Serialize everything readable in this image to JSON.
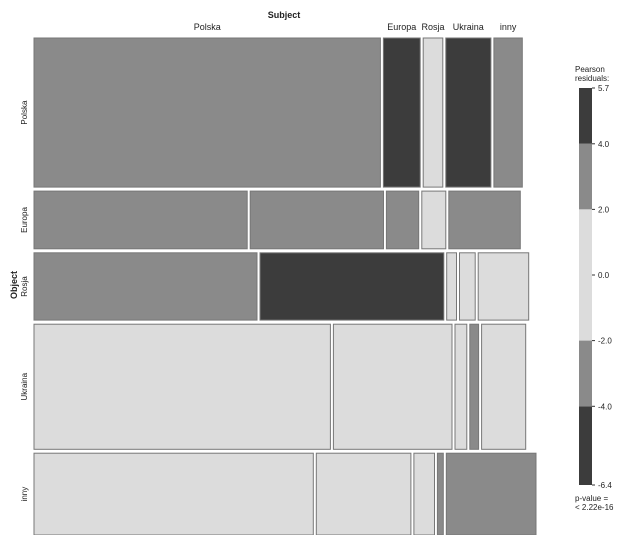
{
  "chart_data": {
    "type": "mosaic",
    "column_variable": "Subject",
    "row_variable": "Object",
    "subject_categories": [
      "Polska",
      "Europa",
      "Rosja",
      "Ukraina",
      "inny"
    ],
    "object_categories": [
      "Polska",
      "Europa",
      "Rosja",
      "Ukraina",
      "inny"
    ],
    "rows": [
      {
        "object": "Polska",
        "proportion": 0.31,
        "cells": [
          {
            "subject": "Polska",
            "share": 0.707,
            "residual_band": "2.0 to 4.0"
          },
          {
            "subject": "Europa",
            "share": 0.075,
            "residual_band": "above 4.0"
          },
          {
            "subject": "Rosja",
            "share": 0.04,
            "residual_band": "-2.0 to 2.0"
          },
          {
            "subject": "Ukraina",
            "share": 0.092,
            "residual_band": "above 4.0"
          },
          {
            "subject": "inny",
            "share": 0.058,
            "residual_band": "2.0 to 4.0"
          }
        ]
      },
      {
        "object": "Europa",
        "proportion": 0.12,
        "cells": [
          {
            "subject": "Polska",
            "share": 0.435,
            "residual_band": "2.0 to 4.0"
          },
          {
            "subject": "Europa",
            "share": 0.272,
            "residual_band": "2.0 to 4.0"
          },
          {
            "subject": "Rosja",
            "share": 0.066,
            "residual_band": "2.0 to 4.0"
          },
          {
            "subject": "Ukraina",
            "share": 0.049,
            "residual_band": "-2.0 to 2.0"
          },
          {
            "subject": "inny",
            "share": 0.146,
            "residual_band": "2.0 to 4.0"
          }
        ]
      },
      {
        "object": "Rosja",
        "proportion": 0.14,
        "cells": [
          {
            "subject": "Polska",
            "share": 0.455,
            "residual_band": "2.0 to 4.0"
          },
          {
            "subject": "Europa",
            "share": 0.375,
            "residual_band": "above 4.0"
          },
          {
            "subject": "Rosja",
            "share": 0.02,
            "residual_band": "-2.0 to 2.0"
          },
          {
            "subject": "Ukraina",
            "share": 0.032,
            "residual_band": "-2.0 to 2.0"
          },
          {
            "subject": "inny",
            "share": 0.103,
            "residual_band": "-2.0 to 2.0"
          }
        ]
      },
      {
        "object": "Ukraina",
        "proportion": 0.26,
        "cells": [
          {
            "subject": "Polska",
            "share": 0.605,
            "residual_band": "-2.0 to 2.0"
          },
          {
            "subject": "Europa",
            "share": 0.242,
            "residual_band": "-2.0 to 2.0"
          },
          {
            "subject": "Rosja",
            "share": 0.024,
            "residual_band": "-2.0 to 2.0"
          },
          {
            "subject": "Ukraina",
            "share": 0.018,
            "residual_band": "-4.0 to -2.0"
          },
          {
            "subject": "inny",
            "share": 0.09,
            "residual_band": "-2.0 to 2.0"
          }
        ]
      },
      {
        "object": "inny",
        "proportion": 0.17,
        "cells": [
          {
            "subject": "Polska",
            "share": 0.57,
            "residual_band": "-2.0 to 2.0"
          },
          {
            "subject": "Europa",
            "share": 0.193,
            "residual_band": "-2.0 to 2.0"
          },
          {
            "subject": "Rosja",
            "share": 0.042,
            "residual_band": "-2.0 to 2.0"
          },
          {
            "subject": "Ukraina",
            "share": 0.012,
            "residual_band": "-4.0 to -2.0"
          },
          {
            "subject": "inny",
            "share": 0.183,
            "residual_band": "2.0 to 4.0"
          }
        ]
      }
    ],
    "legend": {
      "title_lines": [
        "Pearson",
        "residuals:"
      ],
      "min": -6.4,
      "max": 5.7,
      "ticks": [
        "5.7",
        "4.0",
        "2.0",
        "0.0",
        "-2.0",
        "-4.0",
        "-6.4"
      ],
      "bands": [
        {
          "from": 4.0,
          "to": 5.7,
          "color": "#3c3c3c"
        },
        {
          "from": 2.0,
          "to": 4.0,
          "color": "#8a8a8a"
        },
        {
          "from": -2.0,
          "to": 2.0,
          "color": "#dcdcdc"
        },
        {
          "from": -4.0,
          "to": -2.0,
          "color": "#8a8a8a"
        },
        {
          "from": -6.4,
          "to": -4.0,
          "color": "#3c3c3c"
        }
      ],
      "p_value_lines": [
        "p-value =",
        "< 2.22e-16"
      ]
    },
    "band_colors": {
      "above 4.0": "#3c3c3c",
      "2.0 to 4.0": "#8a8a8a",
      "-2.0 to 2.0": "#dcdcdc",
      "-4.0 to -2.0": "#8a8a8a",
      "below -4.0": "#3c3c3c"
    },
    "top_labels": [
      {
        "text": "Polska",
        "subject": "Polska"
      },
      {
        "text": "Europa",
        "subject": "Europa"
      },
      {
        "text": "Rosja",
        "subject": "Rosja"
      },
      {
        "text": "Ukraina",
        "subject": "Ukraina"
      },
      {
        "text": "inny",
        "subject": "inny"
      }
    ]
  }
}
